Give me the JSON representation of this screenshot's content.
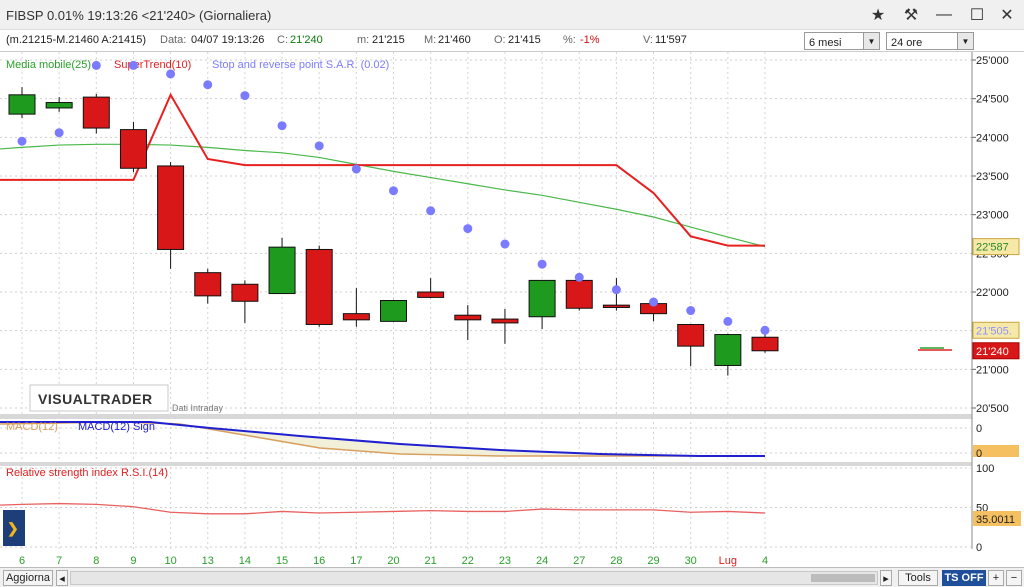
{
  "window": {
    "title": "FIBSP  0.01%  19:13:26   <21'240>   (Giornaliera)"
  },
  "infobar": {
    "range": "(m.21215-M.21460 A:21415)",
    "data_label": "Data:",
    "data_value": "04/07 19:13:26",
    "c_label": "C:",
    "c_value": "21'240",
    "m_label": "m:",
    "m_value": "21'215",
    "M_label": "M:",
    "M_value": "21'460",
    "o_label": "O:",
    "o_value": "21'415",
    "pct_label": "%:",
    "pct_value": "-1%",
    "v_label": "V:",
    "v_value": "11'597",
    "period_select": "6 mesi",
    "hours_select": "24 ore"
  },
  "legend": {
    "ma": "Media mobile(25)",
    "supertrend": "SuperTrend(10)",
    "sar": "Stop and reverse point S.A.R. (0.02)"
  },
  "macd_legend": {
    "macd": "MACD(12)",
    "signal": "MACD(12) Sign"
  },
  "rsi_legend": "Relative strength index R.S.I.(14)",
  "watermark": "VISUALTRADER",
  "intraday": "Dati Intraday",
  "price_axis": [
    "25'000",
    "24'500",
    "24'000",
    "23'500",
    "23'000",
    "22'500",
    "22'000",
    "21'500",
    "21'000",
    "20'500"
  ],
  "price_tags": {
    "ma": "22'587",
    "sar": "21'505.",
    "last": "21'240"
  },
  "macd_axis": [
    "0",
    "0"
  ],
  "rsi_axis": [
    "100",
    "50",
    "0"
  ],
  "rsi_tag": "35.0011",
  "x_labels": [
    "6",
    "7",
    "8",
    "9",
    "10",
    "13",
    "14",
    "15",
    "16",
    "17",
    "20",
    "21",
    "22",
    "23",
    "24",
    "27",
    "28",
    "29",
    "30",
    "Lug",
    "4"
  ],
  "candles": [
    {
      "o": 24300,
      "h": 24650,
      "l": 24250,
      "c": 24550
    },
    {
      "o": 24380,
      "h": 24520,
      "l": 24330,
      "c": 24450
    },
    {
      "o": 24520,
      "h": 24560,
      "l": 24050,
      "c": 24120
    },
    {
      "o": 24100,
      "h": 24200,
      "l": 23550,
      "c": 23600
    },
    {
      "o": 23630,
      "h": 23680,
      "l": 22300,
      "c": 22550
    },
    {
      "o": 22250,
      "h": 22300,
      "l": 21850,
      "c": 21950
    },
    {
      "o": 22100,
      "h": 22150,
      "l": 21600,
      "c": 21880
    },
    {
      "o": 21980,
      "h": 22700,
      "l": 21980,
      "c": 22580
    },
    {
      "o": 22550,
      "h": 22600,
      "l": 21550,
      "c": 21580
    },
    {
      "o": 21720,
      "h": 22050,
      "l": 21550,
      "c": 21640
    },
    {
      "o": 21620,
      "h": 21900,
      "l": 21620,
      "c": 21890
    },
    {
      "o": 22000,
      "h": 22180,
      "l": 21920,
      "c": 21930
    },
    {
      "o": 21700,
      "h": 21830,
      "l": 21380,
      "c": 21640
    },
    {
      "o": 21650,
      "h": 21780,
      "l": 21330,
      "c": 21600
    },
    {
      "o": 21680,
      "h": 22150,
      "l": 21520,
      "c": 22150
    },
    {
      "o": 22150,
      "h": 22220,
      "l": 21760,
      "c": 21790
    },
    {
      "o": 21830,
      "h": 22180,
      "l": 21760,
      "c": 21800
    },
    {
      "o": 21850,
      "h": 21900,
      "l": 21620,
      "c": 21720
    },
    {
      "o": 21580,
      "h": 21580,
      "l": 21040,
      "c": 21300
    },
    {
      "o": 21050,
      "h": 21460,
      "l": 20920,
      "c": 21450
    },
    {
      "o": 21415,
      "h": 21460,
      "l": 21215,
      "c": 21240
    }
  ],
  "ma_values": [
    23870,
    23900,
    23910,
    23910,
    23900,
    23870,
    23830,
    23800,
    23740,
    23650,
    23560,
    23480,
    23400,
    23320,
    23250,
    23160,
    23070,
    22970,
    22840,
    22710,
    22587
  ],
  "supertrend_values": [
    23450,
    23450,
    23450,
    23450,
    24550,
    23720,
    23640,
    23640,
    23640,
    23640,
    23640,
    23640,
    23640,
    23640,
    23640,
    23640,
    23640,
    23280,
    22720,
    22600,
    22600
  ],
  "sar_values": [
    23950,
    24060,
    24930,
    24930,
    24820,
    24680,
    24540,
    24150,
    23890,
    23590,
    23310,
    23050,
    22820,
    22620,
    22360,
    22190,
    22030,
    21870,
    21760,
    21620,
    21505
  ]
}
